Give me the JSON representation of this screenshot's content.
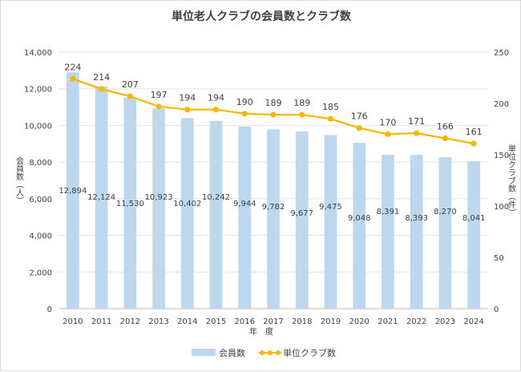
{
  "chart_data": {
    "type": "bar",
    "title": "単位老人クラブの会員数とクラブ数",
    "xlabel": "年　度",
    "categories": [
      "2010",
      "2011",
      "2012",
      "2013",
      "2014",
      "2015",
      "2016",
      "2017",
      "2018",
      "2019",
      "2020",
      "2021",
      "2022",
      "2023",
      "2024"
    ],
    "y_left": {
      "label": "会員数（人）",
      "ylim": [
        0,
        14000
      ],
      "ticks": [
        "0",
        "2,000",
        "4,000",
        "6,000",
        "8,000",
        "10,000",
        "12,000",
        "14,000"
      ]
    },
    "y_right": {
      "label": "単位クラブ数（件）",
      "ylim": [
        0,
        250
      ],
      "ticks": [
        "0",
        "50",
        "100",
        "150",
        "200",
        "250"
      ]
    },
    "series": [
      {
        "name": "会員数",
        "type": "bar",
        "axis": "left",
        "color": "#bdd7ee",
        "values": [
          12894,
          12124,
          11530,
          10923,
          10402,
          10242,
          9944,
          9782,
          9677,
          9475,
          9048,
          8391,
          8393,
          8270,
          8041
        ],
        "labels": [
          "12,894",
          "12,124",
          "11,530",
          "10,923",
          "10,402",
          "10,242",
          "9,944",
          "9,782",
          "9,677",
          "9,475",
          "9,048",
          "8,391",
          "8,393",
          "8,270",
          "8,041"
        ]
      },
      {
        "name": "単位クラブ数",
        "type": "line",
        "axis": "right",
        "color": "#f5b800",
        "values": [
          224,
          214,
          207,
          197,
          194,
          194,
          190,
          189,
          189,
          185,
          176,
          170,
          171,
          166,
          161
        ],
        "labels": [
          "224",
          "214",
          "207",
          "197",
          "194",
          "194",
          "190",
          "189",
          "189",
          "185",
          "176",
          "170",
          "171",
          "166",
          "161"
        ]
      }
    ],
    "grid": true,
    "legend_position": "bottom"
  }
}
